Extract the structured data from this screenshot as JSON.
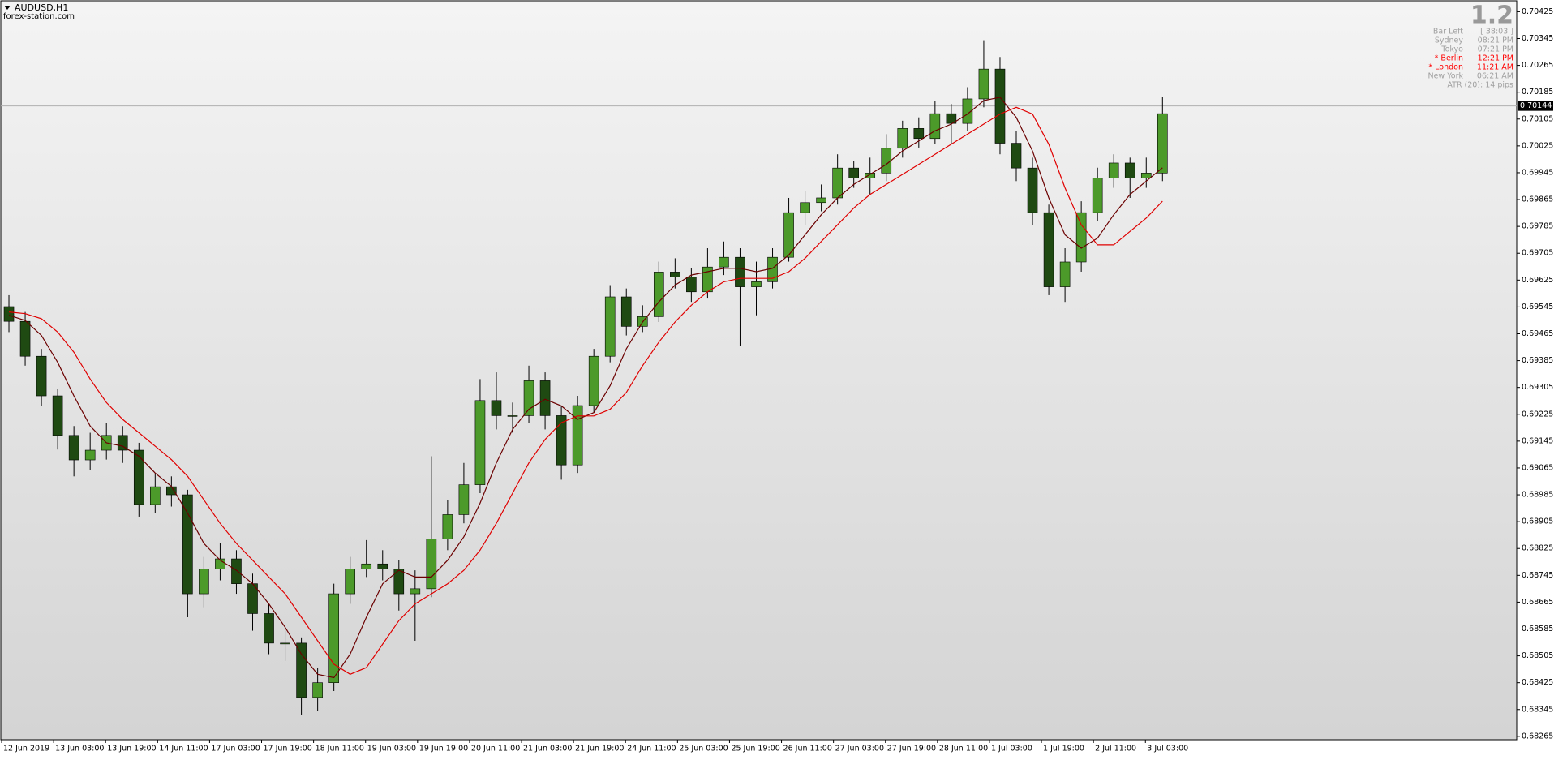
{
  "header": {
    "symbol": "AUDUSD,H1",
    "source": "forex-station.com"
  },
  "info_panel": {
    "spread": 1.2,
    "rows": [
      {
        "label": "Bar Left",
        "value": "[ 38:03 ]",
        "color": "#a0a0a0"
      },
      {
        "label": "Sydney",
        "value": "08:21 PM",
        "color": "#a0a0a0"
      },
      {
        "label": "Tokyo",
        "value": "07:21 PM",
        "color": "#a0a0a0"
      },
      {
        "label": "* Berlin",
        "value": "12:21 PM",
        "color": "#ff0000"
      },
      {
        "label": "* London",
        "value": "11:21 AM",
        "color": "#ff0000"
      },
      {
        "label": "New York",
        "value": "06:21 AM",
        "color": "#a0a0a0"
      }
    ],
    "atr": "ATR (20): 14 pips"
  },
  "chart_data": {
    "type": "candlestick",
    "up_color": "#4c9a2a",
    "down_color": "#1f4a12",
    "wick_color": "#000000",
    "open": [
      0.69546,
      0.69502,
      0.69398,
      0.6928,
      0.69162,
      0.69089,
      0.69118,
      0.69162,
      0.69118,
      0.68956,
      0.69009,
      0.68985,
      0.6869,
      0.68764,
      0.68794,
      0.6872,
      0.68631,
      0.68543,
      0.68543,
      0.68381,
      0.68425,
      0.6869,
      0.68764,
      0.68779,
      0.68764,
      0.6869,
      0.68705,
      0.68853,
      0.68926,
      0.69015,
      0.69266,
      0.69221,
      0.69221,
      0.69325,
      0.69221,
      0.69074,
      0.69251,
      0.69398,
      0.69575,
      0.69487,
      0.69516,
      0.69649,
      0.69634,
      0.6959,
      0.69664,
      0.69693,
      0.69605,
      0.6962,
      0.69693,
      0.69826,
      0.69856,
      0.6987,
      0.69959,
      0.69929,
      0.69944,
      0.70018,
      0.70077,
      0.70047,
      0.70121,
      0.70092,
      0.70165,
      0.70254,
      0.70033,
      0.69959,
      0.69826,
      0.69605,
      0.69679,
      0.69826,
      0.69929,
      0.69974,
      0.69929,
      0.69944
    ],
    "high": [
      0.6958,
      0.6953,
      0.6942,
      0.693,
      0.6919,
      0.6917,
      0.692,
      0.6919,
      0.6914,
      0.6905,
      0.6904,
      0.69,
      0.688,
      0.6884,
      0.6882,
      0.6875,
      0.6866,
      0.6858,
      0.6856,
      0.6847,
      0.6872,
      0.688,
      0.6885,
      0.6882,
      0.6879,
      0.6876,
      0.691,
      0.6897,
      0.6908,
      0.6933,
      0.6935,
      0.6926,
      0.6937,
      0.6935,
      0.6925,
      0.6928,
      0.6942,
      0.6961,
      0.696,
      0.6955,
      0.6968,
      0.6969,
      0.6966,
      0.6972,
      0.6974,
      0.6972,
      0.6968,
      0.6972,
      0.6987,
      0.6989,
      0.6991,
      0.7,
      0.6998,
      0.6999,
      0.7006,
      0.701,
      0.7011,
      0.7016,
      0.7015,
      0.702,
      0.7034,
      0.7029,
      0.7007,
      0.6999,
      0.6985,
      0.6972,
      0.6986,
      0.6996,
      0.7,
      0.6999,
      0.6999,
      0.7017
    ],
    "low": [
      0.6947,
      0.6937,
      0.6925,
      0.6912,
      0.6904,
      0.6906,
      0.6909,
      0.6908,
      0.6892,
      0.6893,
      0.6895,
      0.6862,
      0.6865,
      0.6873,
      0.6869,
      0.6858,
      0.6851,
      0.6849,
      0.6833,
      0.6834,
      0.684,
      0.6866,
      0.6874,
      0.6873,
      0.6864,
      0.6855,
      0.6868,
      0.6882,
      0.689,
      0.6899,
      0.6918,
      0.6917,
      0.692,
      0.6918,
      0.6903,
      0.6905,
      0.6923,
      0.6938,
      0.6946,
      0.6947,
      0.695,
      0.696,
      0.6956,
      0.6957,
      0.6964,
      0.6943,
      0.6952,
      0.696,
      0.6968,
      0.6979,
      0.6983,
      0.6985,
      0.699,
      0.6988,
      0.6992,
      0.6999,
      0.7002,
      0.7003,
      0.7003,
      0.7007,
      0.7014,
      0.7,
      0.6992,
      0.6979,
      0.6958,
      0.6956,
      0.6965,
      0.698,
      0.699,
      0.6987,
      0.699,
      0.6992
    ],
    "close": [
      0.69502,
      0.69398,
      0.6928,
      0.69162,
      0.69089,
      0.69118,
      0.69162,
      0.69118,
      0.68956,
      0.69009,
      0.68985,
      0.6869,
      0.68764,
      0.68794,
      0.6872,
      0.68631,
      0.68543,
      0.68543,
      0.68381,
      0.68425,
      0.6869,
      0.68764,
      0.68779,
      0.68764,
      0.6869,
      0.68705,
      0.68853,
      0.68926,
      0.69015,
      0.69266,
      0.69221,
      0.69221,
      0.69325,
      0.69221,
      0.69074,
      0.69251,
      0.69398,
      0.69575,
      0.69487,
      0.69516,
      0.69649,
      0.69634,
      0.6959,
      0.69664,
      0.69693,
      0.69605,
      0.6962,
      0.69693,
      0.69826,
      0.69856,
      0.6987,
      0.69959,
      0.69929,
      0.69944,
      0.70018,
      0.70077,
      0.70047,
      0.70121,
      0.70092,
      0.70165,
      0.70254,
      0.70033,
      0.69959,
      0.69826,
      0.69605,
      0.69679,
      0.69826,
      0.69929,
      0.69974,
      0.69929,
      0.69944,
      0.70121
    ],
    "lines": [
      {
        "color": "#6b0000",
        "values": [
          0.6952,
          0.69505,
          0.6946,
          0.6938,
          0.6928,
          0.6919,
          0.6914,
          0.6913,
          0.691,
          0.6905,
          0.6901,
          0.6893,
          0.6884,
          0.6879,
          0.6876,
          0.6872,
          0.6866,
          0.6859,
          0.6851,
          0.6845,
          0.6844,
          0.6851,
          0.6862,
          0.6872,
          0.6876,
          0.6874,
          0.6874,
          0.6879,
          0.6886,
          0.6896,
          0.6908,
          0.6918,
          0.6924,
          0.6927,
          0.6925,
          0.6921,
          0.6923,
          0.6931,
          0.6942,
          0.695,
          0.6956,
          0.6961,
          0.6964,
          0.6965,
          0.6966,
          0.6966,
          0.6965,
          0.6966,
          0.697,
          0.6976,
          0.6982,
          0.6987,
          0.6991,
          0.6994,
          0.6997,
          0.7001,
          0.7004,
          0.7007,
          0.7009,
          0.7012,
          0.7016,
          0.7017,
          0.7011,
          0.7001,
          0.6987,
          0.6976,
          0.6972,
          0.6975,
          0.6982,
          0.6988,
          0.6992,
          0.6996
        ]
      },
      {
        "color": "#e00000",
        "values": [
          0.6953,
          0.69525,
          0.6951,
          0.6947,
          0.6941,
          0.6933,
          0.6926,
          0.6921,
          0.6917,
          0.6913,
          0.6909,
          0.6904,
          0.6897,
          0.689,
          0.6884,
          0.6879,
          0.6874,
          0.6869,
          0.6862,
          0.6855,
          0.6848,
          0.6845,
          0.6847,
          0.6854,
          0.6861,
          0.6866,
          0.6869,
          0.6872,
          0.6876,
          0.6882,
          0.689,
          0.6899,
          0.6908,
          0.6915,
          0.692,
          0.6922,
          0.6922,
          0.6924,
          0.6929,
          0.6937,
          0.6944,
          0.695,
          0.6955,
          0.6959,
          0.6962,
          0.6963,
          0.6963,
          0.6963,
          0.6965,
          0.6969,
          0.6974,
          0.6979,
          0.6984,
          0.6988,
          0.6991,
          0.6994,
          0.6997,
          0.7,
          0.7003,
          0.7006,
          0.7009,
          0.7012,
          0.7014,
          0.7012,
          0.7003,
          0.699,
          0.6979,
          0.6973,
          0.6973,
          0.6977,
          0.6981,
          0.6986
        ]
      }
    ],
    "current_price": 0.70144,
    "xlim": [
      0,
      93.3
    ],
    "xticks": [
      {
        "value": 0,
        "label": "12 Jun 2019"
      },
      {
        "value": 3.2,
        "label": "13 Jun 03:00"
      },
      {
        "value": 6.4,
        "label": "13 Jun 19:00"
      },
      {
        "value": 9.6,
        "label": "14 Jun 11:00"
      },
      {
        "value": 12.8,
        "label": "17 Jun 03:00"
      },
      {
        "value": 16,
        "label": "17 Jun 19:00"
      },
      {
        "value": 19.2,
        "label": "18 Jun 11:00"
      },
      {
        "value": 22.4,
        "label": "19 Jun 03:00"
      },
      {
        "value": 25.6,
        "label": "19 Jun 19:00"
      },
      {
        "value": 28.8,
        "label": "20 Jun 11:00"
      },
      {
        "value": 32,
        "label": "21 Jun 03:00"
      },
      {
        "value": 35.2,
        "label": "21 Jun 19:00"
      },
      {
        "value": 38.4,
        "label": "24 Jun 11:00"
      },
      {
        "value": 41.6,
        "label": "25 Jun 03:00"
      },
      {
        "value": 44.8,
        "label": "25 Jun 19:00"
      },
      {
        "value": 48,
        "label": "26 Jun 11:00"
      },
      {
        "value": 51.2,
        "label": "27 Jun 03:00"
      },
      {
        "value": 54.4,
        "label": "27 Jun 19:00"
      },
      {
        "value": 57.6,
        "label": "28 Jun 11:00"
      },
      {
        "value": 60.8,
        "label": "1 Jul 03:00"
      },
      {
        "value": 64,
        "label": "1 Jul 19:00"
      },
      {
        "value": 67.2,
        "label": "2 Jul 11:00"
      },
      {
        "value": 70.4,
        "label": "3 Jul 03:00"
      }
    ],
    "ylim": [
      0.68255,
      0.70455
    ],
    "yticks": [
      0.70425,
      0.70345,
      0.70265,
      0.70185,
      0.70105,
      0.70025,
      0.69945,
      0.69865,
      0.69785,
      0.69705,
      0.69625,
      0.69545,
      0.69465,
      0.69385,
      0.69305,
      0.69225,
      0.69145,
      0.69065,
      0.68985,
      0.68905,
      0.68825,
      0.68745,
      0.68665,
      0.68585,
      0.68505,
      0.68425,
      0.68345,
      0.68265
    ]
  }
}
